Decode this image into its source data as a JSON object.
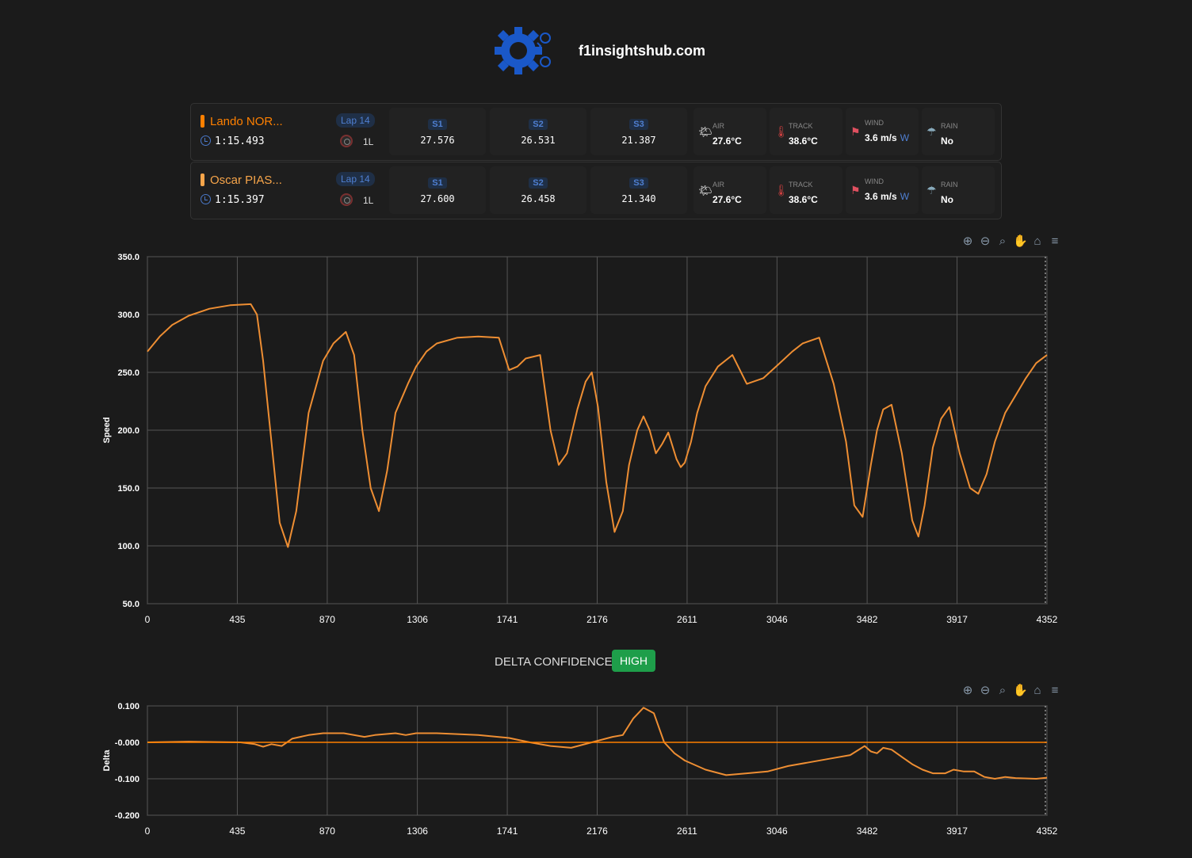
{
  "site": {
    "title": "f1insightshub.com"
  },
  "colors": {
    "lando": "#ff8000",
    "oscar": "#f7a54a",
    "line": "#ee8e33",
    "accent": "#4f7fd1",
    "badge": "#1e9e4a"
  },
  "drivers": [
    {
      "name": "Lando NOR...",
      "lap": "Lap 14",
      "laptime": "1:15.493",
      "tyre": "1L",
      "sectors": [
        {
          "label": "S1",
          "value": "27.576"
        },
        {
          "label": "S2",
          "value": "26.531"
        },
        {
          "label": "S3",
          "value": "21.387"
        }
      ],
      "weather": {
        "air_label": "AIR",
        "air": "27.6°C",
        "track_label": "TRACK",
        "track": "38.6°C",
        "wind_label": "WIND",
        "wind": "3.6 m/s",
        "wind_dir": "W",
        "rain_label": "RAIN",
        "rain": "No"
      }
    },
    {
      "name": "Oscar PIAS...",
      "lap": "Lap 14",
      "laptime": "1:15.397",
      "tyre": "1L",
      "sectors": [
        {
          "label": "S1",
          "value": "27.600"
        },
        {
          "label": "S2",
          "value": "26.458"
        },
        {
          "label": "S3",
          "value": "21.340"
        }
      ],
      "weather": {
        "air_label": "AIR",
        "air": "27.6°C",
        "track_label": "TRACK",
        "track": "38.6°C",
        "wind_label": "WIND",
        "wind": "3.6 m/s",
        "wind_dir": "W",
        "rain_label": "RAIN",
        "rain": "No"
      }
    }
  ],
  "delta_confidence": {
    "label": "DELTA CONFIDENCE:",
    "value": "HIGH"
  },
  "toolbar_icons": [
    "zoom-in-icon",
    "zoom-out-icon",
    "zoom-select-icon",
    "pan-hand-icon",
    "home-reset-icon",
    "menu-icon"
  ],
  "chart_data": [
    {
      "type": "line",
      "title": "",
      "xlabel": "",
      "ylabel": "Speed",
      "xlim": [
        0,
        4352
      ],
      "ylim": [
        50,
        350
      ],
      "xticks": [
        "0",
        "435",
        "870",
        "1306",
        "1741",
        "2176",
        "2611",
        "3046",
        "3482",
        "3917",
        "4352"
      ],
      "yticks": [
        "50.0",
        "100.0",
        "150.0",
        "200.0",
        "250.0",
        "300.0",
        "350.0"
      ],
      "series": [
        {
          "x": [
            0,
            60,
            120,
            200,
            300,
            400,
            500,
            530,
            560,
            600,
            640,
            680,
            720,
            780,
            850,
            900,
            960,
            1000,
            1040,
            1080,
            1120,
            1160,
            1200,
            1260,
            1300,
            1350,
            1400,
            1500,
            1600,
            1700,
            1750,
            1790,
            1830,
            1900,
            1950,
            1990,
            2030,
            2080,
            2120,
            2150,
            2180,
            2220,
            2260,
            2300,
            2330,
            2370,
            2400,
            2430,
            2460,
            2490,
            2520,
            2560,
            2580,
            2600,
            2630,
            2660,
            2700,
            2760,
            2830,
            2900,
            2980,
            3060,
            3120,
            3170,
            3250,
            3320,
            3380,
            3420,
            3460,
            3500,
            3530,
            3560,
            3600,
            3650,
            3700,
            3730,
            3760,
            3800,
            3840,
            3880,
            3930,
            3980,
            4020,
            4060,
            4100,
            4150,
            4200,
            4250,
            4300,
            4352
          ],
          "y": [
            268,
            281,
            291,
            299,
            305,
            308,
            309,
            300,
            260,
            190,
            120,
            99,
            130,
            215,
            260,
            275,
            285,
            265,
            200,
            150,
            130,
            165,
            215,
            240,
            255,
            268,
            275,
            280,
            281,
            280,
            252,
            255,
            262,
            265,
            200,
            170,
            180,
            218,
            242,
            250,
            220,
            155,
            112,
            130,
            170,
            200,
            212,
            200,
            180,
            188,
            198,
            175,
            168,
            172,
            190,
            215,
            238,
            255,
            265,
            240,
            245,
            258,
            268,
            275,
            280,
            240,
            190,
            135,
            125,
            170,
            200,
            218,
            222,
            180,
            122,
            108,
            135,
            185,
            210,
            220,
            180,
            150,
            145,
            162,
            190,
            215,
            230,
            245,
            258,
            265
          ]
        }
      ]
    },
    {
      "type": "line",
      "title": "",
      "xlabel": "",
      "ylabel": "Delta",
      "xlim": [
        0,
        4352
      ],
      "ylim": [
        -0.2,
        0.1
      ],
      "xticks": [
        "0",
        "435",
        "870",
        "1306",
        "1741",
        "2176",
        "2611",
        "3046",
        "3482",
        "3917",
        "4352"
      ],
      "yticks": [
        "-0.200",
        "-0.100",
        "-0.000",
        "0.100"
      ],
      "series": [
        {
          "x": [
            0,
            200,
            450,
            520,
            560,
            600,
            650,
            700,
            780,
            850,
            950,
            1050,
            1100,
            1200,
            1250,
            1300,
            1400,
            1600,
            1750,
            1850,
            1950,
            2050,
            2150,
            2250,
            2300,
            2350,
            2400,
            2450,
            2500,
            2550,
            2600,
            2700,
            2800,
            2900,
            3000,
            3100,
            3200,
            3300,
            3400,
            3470,
            3500,
            3530,
            3560,
            3600,
            3650,
            3700,
            3750,
            3800,
            3860,
            3900,
            3950,
            4000,
            4050,
            4100,
            4150,
            4200,
            4300,
            4352
          ],
          "y": [
            0.0,
            0.002,
            0.0,
            -0.005,
            -0.012,
            -0.005,
            -0.01,
            0.01,
            0.02,
            0.025,
            0.025,
            0.015,
            0.02,
            0.025,
            0.02,
            0.025,
            0.025,
            0.02,
            0.012,
            0.0,
            -0.01,
            -0.015,
            0.0,
            0.015,
            0.02,
            0.065,
            0.095,
            0.08,
            0.0,
            -0.03,
            -0.05,
            -0.075,
            -0.09,
            -0.085,
            -0.08,
            -0.065,
            -0.055,
            -0.045,
            -0.035,
            -0.01,
            -0.025,
            -0.03,
            -0.015,
            -0.02,
            -0.04,
            -0.06,
            -0.075,
            -0.085,
            -0.085,
            -0.075,
            -0.08,
            -0.08,
            -0.095,
            -0.1,
            -0.095,
            -0.098,
            -0.1,
            -0.097
          ]
        },
        {
          "x": [
            0,
            4352
          ],
          "y": [
            0,
            0
          ]
        }
      ]
    }
  ]
}
